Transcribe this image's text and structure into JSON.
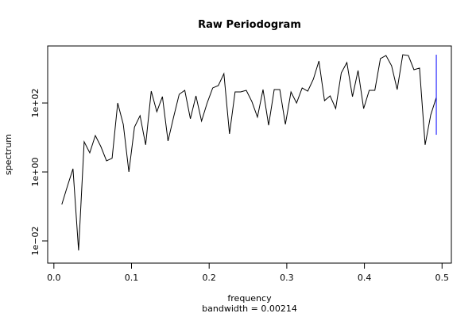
{
  "chart_data": {
    "type": "line",
    "title": "Raw Periodogram",
    "subtitle": "bandwidth = 0.00214",
    "xlabel": "frequency",
    "ylabel": "spectrum",
    "log_y": true,
    "color": "#000000",
    "x": [
      0.0102,
      0.0174,
      0.0246,
      0.0318,
      0.039,
      0.0462,
      0.0534,
      0.0606,
      0.0678,
      0.075,
      0.0822,
      0.0894,
      0.0966,
      0.1038,
      0.111,
      0.1182,
      0.1254,
      0.1326,
      0.1398,
      0.147,
      0.1542,
      0.1614,
      0.1686,
      0.1758,
      0.183,
      0.1902,
      0.1974,
      0.2046,
      0.2118,
      0.219,
      0.2262,
      0.2334,
      0.2406,
      0.2478,
      0.255,
      0.2622,
      0.2694,
      0.2766,
      0.2838,
      0.291,
      0.2982,
      0.3054,
      0.3126,
      0.3198,
      0.327,
      0.3342,
      0.3414,
      0.3486,
      0.3558,
      0.363,
      0.3702,
      0.3774,
      0.3846,
      0.3918,
      0.399,
      0.4062,
      0.4134,
      0.4206,
      0.4278,
      0.435,
      0.4422,
      0.4494,
      0.4566,
      0.4638,
      0.471,
      0.4782,
      0.4854,
      0.4926
    ],
    "values": [
      0.114,
      0.385,
      1.24,
      0.0053,
      7.5,
      3.6,
      11.4,
      5.4,
      2.1,
      2.5,
      100,
      24,
      1.0,
      20,
      43,
      6.1,
      221,
      56,
      153,
      7.9,
      39,
      179,
      233,
      35,
      161,
      30,
      100,
      274,
      321,
      710,
      12.7,
      210,
      210,
      233,
      111,
      39,
      246,
      22.7,
      246,
      246,
      24,
      210,
      100,
      274,
      221,
      490,
      1650,
      117,
      161,
      69,
      748,
      1490,
      153,
      877,
      69,
      233,
      233,
      1940,
      2390,
      1200,
      246,
      2520,
      2390,
      925,
      1030,
      6.1,
      45,
      145
    ],
    "ci_bar": {
      "x": 0.4926,
      "low": 12,
      "high": 2520,
      "color": "#0000ff"
    },
    "xlim": [
      -0.008,
      0.512
    ],
    "ylim": [
      0.00227,
      4520
    ],
    "xticks": [
      {
        "value": 0,
        "label": "0.0"
      },
      0.1,
      0.2,
      0.3,
      0.4,
      0.5
    ],
    "yticks": [
      {
        "value": 0.01,
        "label": "1e−02"
      },
      {
        "value": 1,
        "label": "1e+00"
      },
      {
        "value": 100,
        "label": "1e+02"
      }
    ]
  }
}
